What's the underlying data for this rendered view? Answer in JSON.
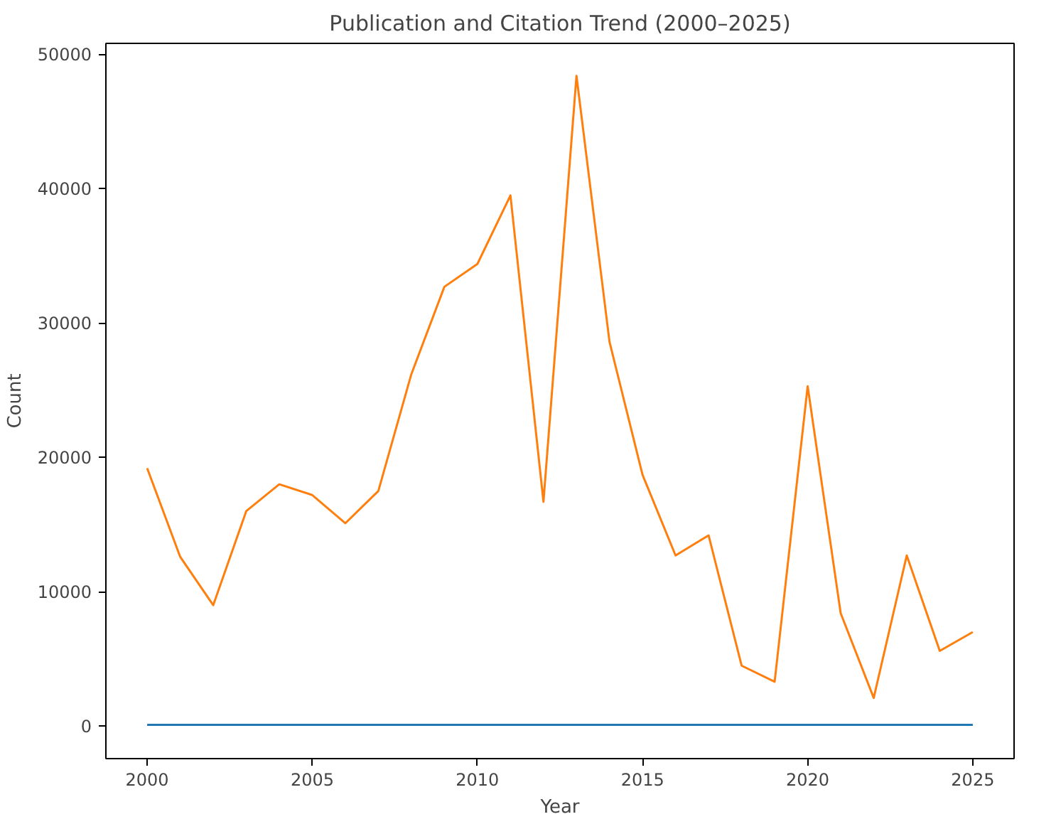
{
  "chart_data": {
    "type": "line",
    "title": "Publication and Citation Trend (2000–2025)",
    "xlabel": "Year",
    "ylabel": "Count",
    "x": [
      2000,
      2001,
      2002,
      2003,
      2004,
      2005,
      2006,
      2007,
      2008,
      2009,
      2010,
      2011,
      2012,
      2013,
      2014,
      2015,
      2016,
      2017,
      2018,
      2019,
      2020,
      2021,
      2022,
      2023,
      2024,
      2025
    ],
    "series": [
      {
        "color": "#1f77b4",
        "values": [
          100,
          100,
          100,
          100,
          100,
          100,
          100,
          100,
          100,
          100,
          100,
          100,
          100,
          100,
          100,
          100,
          100,
          100,
          100,
          100,
          100,
          100,
          100,
          100,
          100,
          100
        ]
      },
      {
        "color": "#ff7f0e",
        "values": [
          19200,
          12600,
          9000,
          16000,
          18000,
          17200,
          15100,
          17500,
          26200,
          32700,
          34400,
          39500,
          16700,
          48400,
          28600,
          18700,
          12700,
          14200,
          4500,
          3300,
          25300,
          8400,
          2100,
          12700,
          5600,
          7000
        ]
      }
    ],
    "xlim": [
      1998.75,
      2026.25
    ],
    "ylim": [
      -2420,
      50820
    ],
    "xticks": [
      2000,
      2005,
      2010,
      2015,
      2020,
      2025
    ],
    "yticks": [
      0,
      10000,
      20000,
      30000,
      40000,
      50000
    ],
    "grid": false
  }
}
